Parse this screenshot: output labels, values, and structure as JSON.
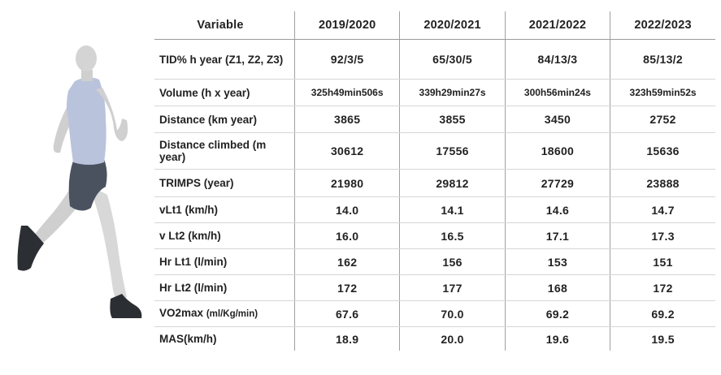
{
  "header": {
    "variable": "Variable",
    "years": [
      "2019/2020",
      "2020/2021",
      "2021/2022",
      "2022/2023"
    ]
  },
  "rows": [
    {
      "label": "TID% h year (Z1, Z2, Z3)",
      "values": [
        "92/3/5",
        "65/30/5",
        "84/13/3",
        "85/13/2"
      ]
    },
    {
      "label": "Volume (h x year)",
      "values": [
        "325h49min506s",
        "339h29min27s",
        "300h56min24s",
        "323h59min52s"
      ]
    },
    {
      "label": "Distance (km year)",
      "values": [
        "3865",
        "3855",
        "3450",
        "2752"
      ]
    },
    {
      "label": "Distance climbed (m year)",
      "values": [
        "30612",
        "17556",
        "18600",
        "15636"
      ]
    },
    {
      "label": "TRIMPS (year)",
      "values": [
        "21980",
        "29812",
        "27729",
        "23888"
      ]
    },
    {
      "label": "vLt1 (km/h)",
      "values": [
        "14.0",
        "14.1",
        "14.6",
        "14.7"
      ]
    },
    {
      "label": "v Lt2 (km/h)",
      "values": [
        "16.0",
        "16.5",
        "17.1",
        "17.3"
      ]
    },
    {
      "label": "Hr Lt1 (l/min)",
      "values": [
        "162",
        "156",
        "153",
        "151"
      ]
    },
    {
      "label": "Hr Lt2 (l/min)",
      "values": [
        "172",
        "177",
        "168",
        "172"
      ]
    },
    {
      "label": "VO2max",
      "label_unit": "(ml/Kg/min)",
      "values": [
        "67.6",
        "70.0",
        "69.2",
        "69.2"
      ]
    },
    {
      "label": "MAS(km/h)",
      "values": [
        "18.9",
        "20.0",
        "19.6",
        "19.5"
      ]
    }
  ],
  "colors": {
    "shirt": "#b9c3dc",
    "shorts": "#4a5260",
    "skin": "#d4d4d4",
    "shoe": "#2b2e33"
  },
  "illustration": "runner-icon"
}
